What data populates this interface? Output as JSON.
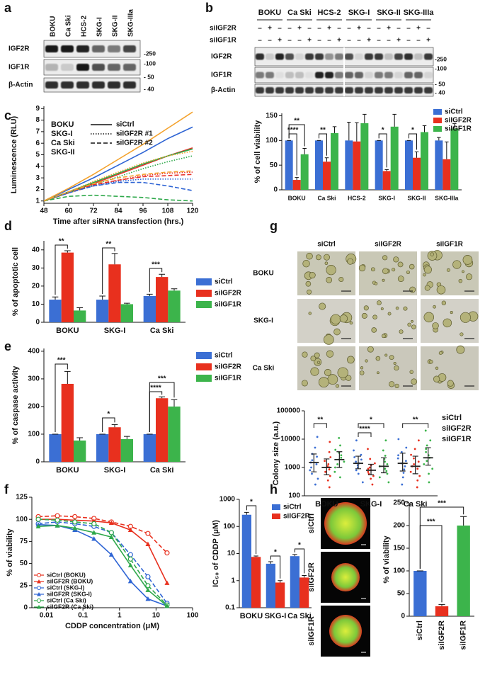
{
  "panel_labels": [
    "a",
    "b",
    "c",
    "d",
    "e",
    "f",
    "g",
    "h"
  ],
  "blots": {
    "a": {
      "lanes": [
        "BOKU",
        "Ca Ski",
        "HCS-2",
        "SKG-I",
        "SKG-II",
        "SKG-IIIa"
      ],
      "bands": [
        "IGF2R",
        "IGF1R",
        "β-Actin"
      ],
      "markers": [
        "-250",
        "-100",
        "- 50",
        "- 40"
      ]
    },
    "b": {
      "groups": [
        "BOKU",
        "Ca Ski",
        "HCS-2",
        "SKG-I",
        "SKG-II",
        "SKG-IIIa"
      ],
      "treatments": [
        {
          "name": "siIGF2R",
          "signs": [
            "–",
            "+",
            "–",
            "–",
            "+",
            "–",
            "–",
            "+",
            "–",
            "–",
            "+",
            "–",
            "–",
            "+",
            "–",
            "–",
            "+",
            "–"
          ]
        },
        {
          "name": "siIGF1R",
          "signs": [
            "–",
            "–",
            "+",
            "–",
            "–",
            "+",
            "–",
            "–",
            "+",
            "–",
            "–",
            "+",
            "–",
            "–",
            "+",
            "–",
            "–",
            "+"
          ]
        }
      ],
      "bands": [
        "IGF2R",
        "IGF1R",
        "β-Actin"
      ],
      "markers": [
        "-250",
        "-100",
        "- 50",
        "- 40"
      ]
    }
  },
  "micrographs": {
    "g": {
      "columns": [
        "siCtrl",
        "siIGF2R",
        "siIGF1R"
      ],
      "rows": [
        "BOKU",
        "SKG-I",
        "Ca Ski"
      ]
    },
    "h": {
      "rows": [
        "siCtrl",
        "siIGF2R",
        "siIGF1R"
      ]
    }
  },
  "chart_data": [
    {
      "type": "line",
      "x_label": "Time after siRNA transfection (hrs.)",
      "y_label": "Luminescence (RLU)",
      "x": [
        48,
        60,
        72,
        84,
        96,
        108,
        120
      ],
      "xlim": [
        48,
        120
      ],
      "xticks": [
        48,
        60,
        72,
        84,
        96,
        108,
        120
      ],
      "ylim": [
        0.8,
        9.2
      ],
      "yticks": [
        1,
        2,
        3,
        4,
        5,
        6,
        7,
        8,
        9
      ],
      "series": [
        {
          "name": "BOKU",
          "condition": "siCtrl",
          "color": "#e8312a",
          "dash": "solid",
          "values": [
            1,
            1.7,
            2.5,
            3.3,
            4.1,
            4.9,
            5.6
          ]
        },
        {
          "name": "SKG-I",
          "condition": "siCtrl",
          "color": "#2e64d4",
          "dash": "solid",
          "values": [
            1,
            2,
            3,
            4.1,
            5.2,
            6.4,
            7.4
          ]
        },
        {
          "name": "Ca Ski",
          "condition": "siCtrl",
          "color": "#2ea84a",
          "dash": "solid",
          "values": [
            1,
            1.8,
            2.6,
            3.4,
            4.2,
            4.9,
            5.5
          ]
        },
        {
          "name": "SKG-II",
          "condition": "siCtrl",
          "color": "#f4a22d",
          "dash": "solid",
          "values": [
            1,
            2.1,
            3.3,
            4.6,
            5.9,
            7.3,
            8.7
          ]
        },
        {
          "name": "BOKU",
          "condition": "siIGF2R #1",
          "color": "#e8312a",
          "dash": "dotted",
          "values": [
            1,
            1.7,
            2.3,
            2.8,
            3.2,
            3.4,
            3.5
          ]
        },
        {
          "name": "SKG-I",
          "condition": "siIGF2R #1",
          "color": "#2e64d4",
          "dash": "dotted",
          "values": [
            1,
            1.8,
            2.3,
            2.7,
            2.9,
            2.9,
            2.9
          ]
        },
        {
          "name": "Ca Ski",
          "condition": "siIGF2R #1",
          "color": "#2ea84a",
          "dash": "dotted",
          "values": [
            1,
            1.7,
            2.4,
            3.1,
            3.8,
            4.4,
            4.9
          ]
        },
        {
          "name": "SKG-II",
          "condition": "siIGF2R #1",
          "color": "#f4a22d",
          "dash": "dotted",
          "values": [
            1,
            1.8,
            2.7,
            3.5,
            4.3,
            4.9,
            5.3
          ]
        },
        {
          "name": "BOKU",
          "condition": "siIGF2R #2",
          "color": "#e8312a",
          "dash": "dashed",
          "values": [
            1,
            1.7,
            2.4,
            2.8,
            3.1,
            3.2,
            3.3
          ]
        },
        {
          "name": "SKG-I",
          "condition": "siIGF2R #2",
          "color": "#2e64d4",
          "dash": "dashed",
          "values": [
            1,
            1.7,
            2.3,
            2.6,
            2.6,
            2.3,
            1.9
          ]
        },
        {
          "name": "Ca Ski",
          "condition": "siIGF2R #2",
          "color": "#2ea84a",
          "dash": "dashed",
          "values": [
            1,
            1.4,
            1.5,
            1.4,
            1.3,
            1.1,
            1.0
          ]
        },
        {
          "name": "SKG-II",
          "condition": "siIGF2R #2",
          "color": "#f4a22d",
          "dash": "dashed",
          "values": [
            1,
            1.8,
            2.5,
            3.0,
            3.3,
            3.5,
            3.6
          ]
        }
      ]
    },
    {
      "type": "bar",
      "y_label": "% of cell viability",
      "categories": [
        "BOKU",
        "Ca Ski",
        "HCS-2",
        "SKG-I",
        "SKG-II",
        "SKG-IIIa"
      ],
      "ylim": [
        0,
        155
      ],
      "yticks": [
        0,
        50,
        100,
        150
      ],
      "series": [
        {
          "name": "siCtrl",
          "color": "#3b6fd4",
          "values": [
            100,
            100,
            100,
            100,
            100,
            100
          ],
          "errors": [
            0,
            0,
            37,
            0,
            0,
            6
          ]
        },
        {
          "name": "siIGF2R",
          "color": "#e8301e",
          "values": [
            20,
            57,
            98,
            38,
            65,
            62
          ],
          "errors": [
            5,
            8,
            38,
            3,
            12,
            35
          ]
        },
        {
          "name": "siIGF1R",
          "color": "#3cb44b",
          "values": [
            72,
            115,
            135,
            128,
            117,
            124
          ],
          "errors": [
            12,
            13,
            18,
            25,
            13,
            10
          ]
        }
      ],
      "annotations": [
        "**",
        "****",
        "**",
        "*",
        "*"
      ]
    },
    {
      "type": "bar",
      "y_label": "% of apoptotic cell",
      "categories": [
        "BOKU",
        "SKG-I",
        "Ca Ski"
      ],
      "ylim": [
        0,
        45
      ],
      "yticks": [
        0,
        10,
        20,
        30,
        40
      ],
      "series": [
        {
          "name": "siCtrl",
          "color": "#3b6fd4",
          "values": [
            12.5,
            12.5,
            14.5
          ],
          "errors": [
            1.5,
            2,
            1
          ]
        },
        {
          "name": "siIGF2R",
          "color": "#e8301e",
          "values": [
            38.5,
            32,
            25
          ],
          "errors": [
            1,
            6,
            1.5
          ]
        },
        {
          "name": "siIGF1R",
          "color": "#3cb44b",
          "values": [
            6.5,
            10,
            17.5
          ],
          "errors": [
            1.5,
            0.5,
            1
          ]
        }
      ],
      "annotations": [
        "**",
        "**",
        "***"
      ]
    },
    {
      "type": "bar",
      "y_label": "% of caspase activity",
      "categories": [
        "BOKU",
        "SKG-I",
        "Ca Ski"
      ],
      "ylim": [
        0,
        410
      ],
      "yticks": [
        0,
        100,
        200,
        300,
        400
      ],
      "series": [
        {
          "name": "siCtrl",
          "color": "#3b6fd4",
          "values": [
            100,
            100,
            100
          ],
          "errors": [
            0,
            0,
            0
          ]
        },
        {
          "name": "siIGF2R",
          "color": "#e8301e",
          "values": [
            282,
            125,
            230
          ],
          "errors": [
            45,
            10,
            5
          ]
        },
        {
          "name": "siIGF1R",
          "color": "#3cb44b",
          "values": [
            77,
            82,
            200
          ],
          "errors": [
            10,
            10,
            25
          ]
        }
      ],
      "annotations": [
        "***",
        "*",
        "****",
        "***"
      ]
    },
    {
      "type": "line",
      "x_label": "CDDP concentration (μM)",
      "y_label": "% of viability",
      "log_x": true,
      "x": [
        0.006,
        0.02,
        0.06,
        0.2,
        0.6,
        2,
        6,
        20
      ],
      "xlim": [
        0.004,
        100
      ],
      "xticks": [
        0.01,
        0.1,
        1,
        10,
        100
      ],
      "ylim": [
        0,
        125
      ],
      "yticks": [
        0,
        25,
        50,
        75,
        100,
        125
      ],
      "series": [
        {
          "name": "siCtrl (BOKU)",
          "color": "#e8301e",
          "marker": "open-circle",
          "dash": "dashed",
          "values": [
            103,
            104,
            103,
            101,
            97,
            92,
            84,
            62
          ]
        },
        {
          "name": "siIGF2R (BOKU)",
          "color": "#e8301e",
          "marker": "triangle",
          "dash": "solid",
          "values": [
            100,
            100,
            99,
            98,
            96,
            88,
            72,
            28
          ]
        },
        {
          "name": "siCtrl (SKG-I)",
          "color": "#2e64d4",
          "marker": "open-circle",
          "dash": "dashed",
          "values": [
            95,
            97,
            95,
            92,
            85,
            60,
            35,
            5
          ]
        },
        {
          "name": "siIGF2R (SKG-I)",
          "color": "#2e64d4",
          "marker": "triangle",
          "dash": "solid",
          "values": [
            94,
            93,
            88,
            78,
            60,
            30,
            10,
            2
          ]
        },
        {
          "name": "siCtrl (Ca Ski)",
          "color": "#2ea84a",
          "marker": "open-circle",
          "dash": "dashed",
          "values": [
            100,
            99,
            97,
            95,
            85,
            55,
            25,
            3
          ]
        },
        {
          "name": "siIGF2R (Ca Ski)",
          "color": "#2ea84a",
          "marker": "triangle",
          "dash": "solid",
          "values": [
            92,
            93,
            90,
            85,
            80,
            48,
            20,
            2
          ]
        }
      ]
    },
    {
      "type": "bar",
      "y_label": "IC₅₀ of CDDP (μM)",
      "log_y": true,
      "categories": [
        "BOKU",
        "SKG-I",
        "Ca Ski"
      ],
      "ylim": [
        0.1,
        1000
      ],
      "yticks": [
        0.1,
        1,
        10,
        100,
        1000
      ],
      "series": [
        {
          "name": "siCtrl",
          "color": "#3b6fd4",
          "values": [
            270,
            4.2,
            8
          ],
          "errors": [
            60,
            0.8,
            1.2
          ]
        },
        {
          "name": "siIGF2R",
          "color": "#e8301e",
          "values": [
            7.5,
            0.85,
            1.3
          ],
          "errors": [
            0.6,
            0.15,
            0.25
          ]
        }
      ],
      "annotations": [
        "*",
        "*",
        "*"
      ]
    },
    {
      "type": "strip",
      "y_label": "Colony size (a.u.)",
      "log_y": true,
      "categories": [
        "BOKU",
        "SKG-I",
        "Ca Ski"
      ],
      "ylim": [
        100,
        100000
      ],
      "yticks": [
        100,
        1000,
        10000,
        100000
      ],
      "series": [
        {
          "name": "siCtrl",
          "color": "#3b6fd4",
          "points": [
            [
              250,
              400,
              600,
              800,
              1000,
              1300,
              1500,
              1800,
              2400,
              3000,
              5000,
              12000
            ],
            [
              300,
              600,
              800,
              1000,
              1200,
              1400,
              1600,
              1900,
              2300,
              2800,
              4000,
              9000
            ],
            [
              250,
              450,
              650,
              850,
              1100,
              1400,
              1700,
              2100,
              2700,
              3500,
              5000,
              10000
            ]
          ],
          "median": [
            1500,
            1400,
            1400
          ],
          "q1": [
            700,
            900,
            750
          ],
          "q3": [
            3000,
            2500,
            3200
          ]
        },
        {
          "name": "siIGF2R",
          "color": "#e8301e",
          "points": [
            [
              200,
              350,
              500,
              700,
              850,
              1000,
              1100,
              1300,
              1700,
              2300,
              3500,
              8000
            ],
            [
              250,
              400,
              500,
              600,
              700,
              800,
              900,
              1000,
              1200,
              1400,
              2000,
              4500
            ],
            [
              200,
              350,
              500,
              700,
              900,
              1100,
              1300,
              1600,
              2100,
              2800,
              4500,
              9000
            ]
          ],
          "median": [
            1000,
            800,
            1100
          ],
          "q1": [
            550,
            550,
            600
          ],
          "q3": [
            2000,
            1300,
            2500
          ]
        },
        {
          "name": "siIGF1R",
          "color": "#3cb44b",
          "points": [
            [
              450,
              700,
              1000,
              1300,
              1600,
              1900,
              2200,
              2700,
              3300,
              4200,
              6000,
              11000
            ],
            [
              300,
              450,
              600,
              750,
              900,
              1100,
              1300,
              1600,
              2000,
              2600,
              4000,
              9000
            ],
            [
              300,
              600,
              900,
              1300,
              1700,
              2200,
              2700,
              3500,
              4500,
              6000,
              9000,
              20000
            ]
          ],
          "median": [
            1900,
            1100,
            2200
          ],
          "q1": [
            1000,
            650,
            1200
          ],
          "q3": [
            3600,
            2200,
            5000
          ]
        }
      ],
      "annotations": [
        "**",
        "****",
        "*",
        "**"
      ]
    },
    {
      "type": "bar",
      "y_label": "% of viability",
      "categories": [
        "siCtrl",
        "siIGF2R",
        "siIGF1R"
      ],
      "colors": [
        "#3b6fd4",
        "#e8301e",
        "#3cb44b"
      ],
      "values": [
        100,
        22,
        200
      ],
      "errors": [
        0,
        4,
        20
      ],
      "ylim": [
        0,
        250
      ],
      "yticks": [
        0,
        50,
        100,
        150,
        200,
        250
      ],
      "annotations": [
        "***",
        "***"
      ]
    }
  ]
}
